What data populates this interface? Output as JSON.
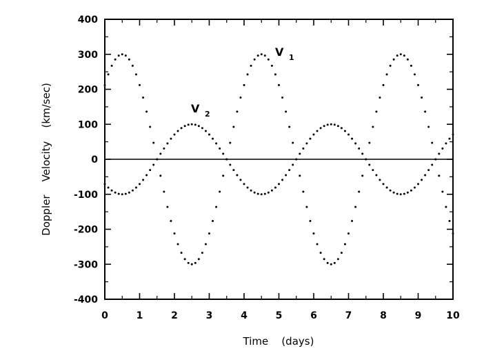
{
  "chart_data": {
    "type": "scatter",
    "title": "",
    "xlabel": "Time    (days)",
    "ylabel": "Doppler    Velocity    (km/sec)",
    "xlim": [
      0,
      10
    ],
    "ylim": [
      -400,
      400
    ],
    "x_ticks": [
      "0",
      "1",
      "2",
      "3",
      "4",
      "5",
      "6",
      "7",
      "8",
      "9",
      "10"
    ],
    "y_ticks": [
      "400",
      "300",
      "200",
      "100",
      "0",
      "-100",
      "-200",
      "-300",
      "-400"
    ],
    "grid": false,
    "zero_line": true,
    "series": [
      {
        "name": "V1",
        "label_main": "V",
        "label_sub": "1",
        "model": "sine",
        "amplitude": 300,
        "period": 4,
        "peak_time": 0.5,
        "x_start": 0,
        "x_end": 10,
        "sample_step": 0.1,
        "peaks": [
          [
            0.5,
            300
          ],
          [
            4.5,
            300
          ],
          [
            8.5,
            300
          ]
        ],
        "troughs": [
          [
            2.5,
            -300
          ],
          [
            6.5,
            -300
          ]
        ]
      },
      {
        "name": "V2",
        "label_main": "V",
        "label_sub": "2",
        "model": "sine",
        "amplitude": 100,
        "period": 4,
        "peak_time": 2.5,
        "x_start": 0,
        "x_end": 10,
        "sample_step": 0.1,
        "peaks": [
          [
            2.5,
            100
          ],
          [
            6.5,
            100
          ]
        ],
        "troughs": [
          [
            0.5,
            -100
          ],
          [
            4.5,
            -100
          ],
          [
            8.5,
            -100
          ]
        ]
      }
    ]
  }
}
